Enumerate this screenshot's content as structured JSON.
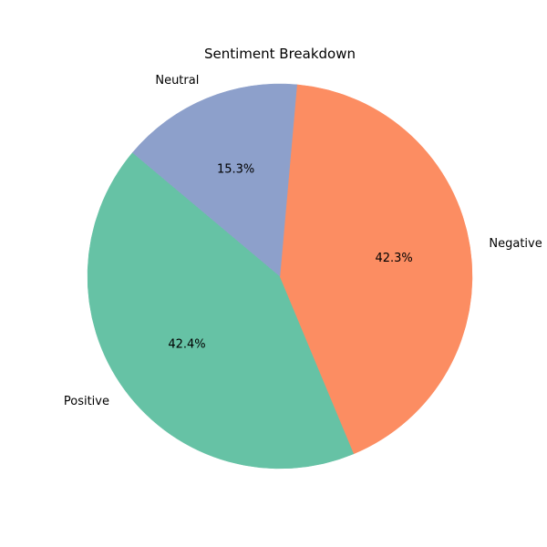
{
  "chart_data": {
    "type": "pie",
    "title": "Sentiment Breakdown",
    "start_angle_deg": 140,
    "counterclock": true,
    "slices": [
      {
        "label": "Positive",
        "value": 42.4,
        "pct_label": "42.4%",
        "color": "#66c2a5"
      },
      {
        "label": "Negative",
        "value": 42.3,
        "pct_label": "42.3%",
        "color": "#fc8d62"
      },
      {
        "label": "Neutral",
        "value": 15.3,
        "pct_label": "15.3%",
        "color": "#8da0cb"
      }
    ]
  }
}
